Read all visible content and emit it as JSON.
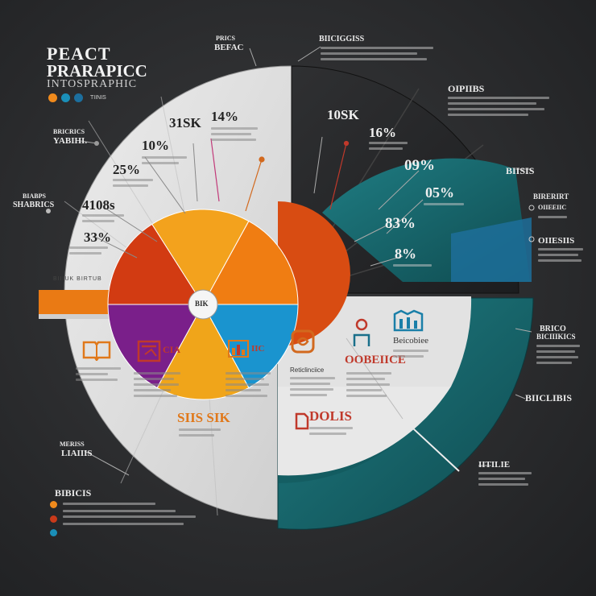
{
  "header": {
    "title_line1": "PEACT",
    "title_line2": "PRARAPICC",
    "title_line3": "INTOSPRAPHIC",
    "dots_label": "TIINIS",
    "dot_colors": [
      "#f08a1c",
      "#1a8fb8",
      "#1c6f9e"
    ]
  },
  "top_labels": {
    "center_top": "PRICS",
    "center_top2": "BEFAC",
    "right_top": "BIICIGGISS"
  },
  "left_labels": {
    "l1_line1": "BRICRICS",
    "l1_line2": "YABIHI.",
    "l2_line1": "BIABPS",
    "l2_line2": "SHABRICS",
    "l3_line1": "MERISS",
    "l3_line2": "LIAIIIS",
    "legend_title": "BIBICIS"
  },
  "percentages": {
    "p1": "31SK",
    "p2": "14%",
    "p3": "10%",
    "p4": "25%",
    "p5": "4108s",
    "p6": "33%",
    "p7": "10SK",
    "p8": "16%",
    "p9": "09%",
    "p10": "05%",
    "p11": "83%",
    "p12": "8%"
  },
  "center": {
    "hub": "BIK",
    "band_label": "BIIIUK BIRTUB",
    "block_a": "SIIS SIK",
    "block_b": "DOLIS",
    "block_c": "OOBEIICE",
    "block_d": "Beicobiee",
    "block_e": "Reticlinciice"
  },
  "right_labels": {
    "r1": "OIPIIBS",
    "r2": "BIISIS",
    "r3": "BIRERIRT",
    "r4": "OIIEEIIC",
    "r5": "OIIESIIS",
    "r6": "BRICO",
    "r6b": "BICIIIKICS",
    "r7": "BIICLIBIS",
    "r8": "IITILIE"
  },
  "legend": {
    "colors": [
      "#f08a1c",
      "#c93a1a",
      "#1a8fb8"
    ]
  },
  "chart_data": {
    "type": "pie",
    "categories": [
      "",
      "",
      "",
      "",
      "",
      ""
    ],
    "values": [
      16,
      17,
      17,
      17,
      16,
      17
    ],
    "colors": [
      "#d23b12",
      "#f3a21d",
      "#f07d12",
      "#1a94cf",
      "#f0a51a",
      "#7a1f8a"
    ]
  }
}
